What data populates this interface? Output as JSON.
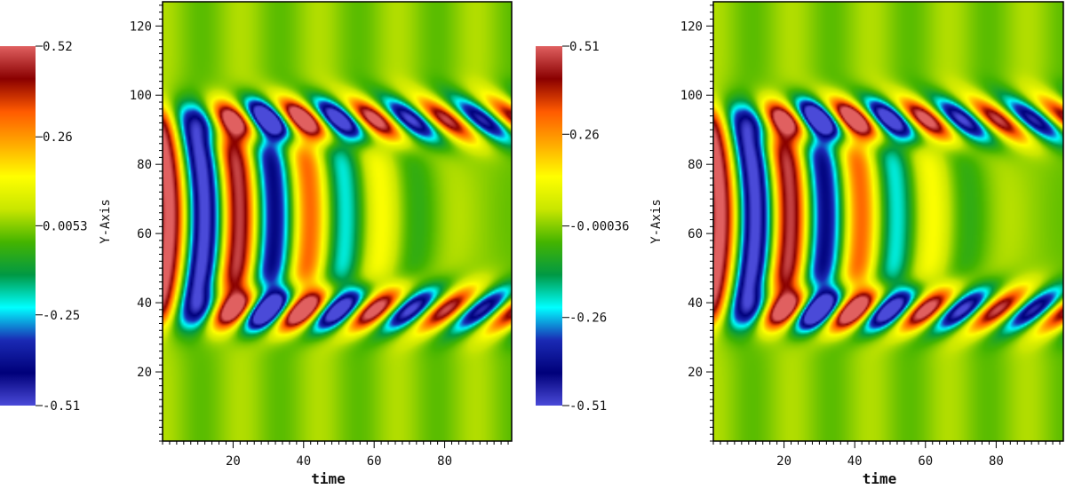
{
  "chart_data": [
    {
      "type": "heatmap",
      "xlabel": "time",
      "ylabel": "Y-Axis",
      "xlim": [
        0,
        99
      ],
      "ylim": [
        0,
        127
      ],
      "x_ticks": [
        20,
        40,
        60,
        80
      ],
      "y_ticks": [
        20,
        40,
        60,
        80,
        100,
        120
      ],
      "x_tick_labels": [
        "20",
        "40",
        "60",
        "80"
      ],
      "y_tick_labels": [
        "20",
        "40",
        "60",
        "80",
        "100",
        "120"
      ],
      "grid": false,
      "colorbar": {
        "min": -0.51,
        "max": 0.52,
        "tick_values": [
          0.52,
          0.26,
          0.0053,
          -0.25,
          -0.51
        ],
        "tick_labels": [
          "0.52",
          "0.26",
          "0.0053",
          "-0.25",
          "-0.51"
        ],
        "placement": "left"
      },
      "pattern": {
        "description": "vertical stripe bands on the left that split into two diagonal wave trains at upper and lower edges",
        "band_center_y": 65,
        "band_half_width_y": 31,
        "upper_train_y": 93,
        "lower_train_y": 38,
        "stripe_period_time": 20
      }
    },
    {
      "type": "heatmap",
      "xlabel": "time",
      "ylabel": "Y-Axis",
      "xlim": [
        0,
        99
      ],
      "ylim": [
        0,
        127
      ],
      "x_ticks": [
        20,
        40,
        60,
        80
      ],
      "y_ticks": [
        20,
        40,
        60,
        80,
        100,
        120
      ],
      "x_tick_labels": [
        "20",
        "40",
        "60",
        "80"
      ],
      "y_tick_labels": [
        "20",
        "40",
        "60",
        "80",
        "100",
        "120"
      ],
      "grid": false,
      "colorbar": {
        "min": -0.51,
        "max": 0.51,
        "tick_values": [
          0.51,
          0.26,
          -0.00036,
          -0.26,
          -0.51
        ],
        "tick_labels": [
          "0.51",
          "0.26",
          "-0.00036",
          "-0.26",
          "-0.51"
        ],
        "placement": "left"
      },
      "pattern": {
        "description": "vertical stripe bands on the left that split into two diagonal wave trains at upper and lower edges",
        "band_center_y": 65,
        "band_half_width_y": 31,
        "upper_train_y": 93,
        "lower_train_y": 38,
        "stripe_period_time": 20
      }
    }
  ],
  "colormap": [
    "#4a4ad8",
    "#00007a",
    "#1a2ab4",
    "#00ffff",
    "#009944",
    "#44b400",
    "#c8e600",
    "#ffff00",
    "#ffaa00",
    "#ff5a00",
    "#8a0000",
    "#e06060"
  ]
}
